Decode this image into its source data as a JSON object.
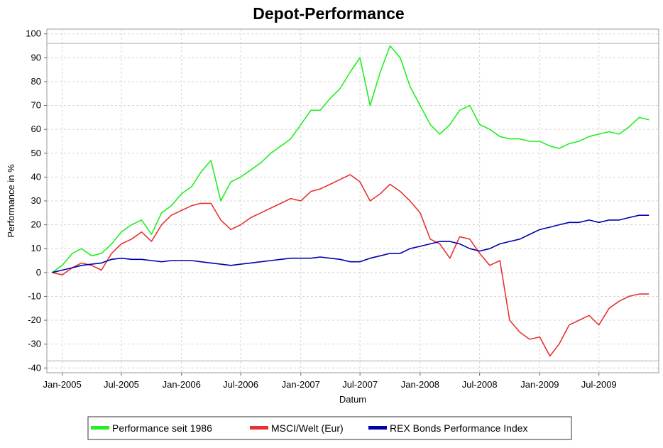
{
  "chart_data": {
    "type": "line",
    "title": "Depot-Performance",
    "xlabel": "Datum",
    "ylabel": "Performance in %",
    "ylim": [
      -42,
      102
    ],
    "xlim": [
      "2004-11-15",
      "2009-12-31"
    ],
    "yticks": [
      100,
      90,
      80,
      70,
      60,
      50,
      40,
      30,
      20,
      10,
      0,
      -10,
      -20,
      -30,
      -40
    ],
    "xticks": [
      {
        "date": "2005-01-01",
        "label": "Jan-2005"
      },
      {
        "date": "2005-07-01",
        "label": "Jul-2005"
      },
      {
        "date": "2006-01-01",
        "label": "Jan-2006"
      },
      {
        "date": "2006-07-01",
        "label": "Jul-2006"
      },
      {
        "date": "2007-01-01",
        "label": "Jan-2007"
      },
      {
        "date": "2007-07-01",
        "label": "Jul-2007"
      },
      {
        "date": "2008-01-01",
        "label": "Jan-2008"
      },
      {
        "date": "2008-07-01",
        "label": "Jul-2008"
      },
      {
        "date": "2009-01-01",
        "label": "Jan-2009"
      },
      {
        "date": "2009-07-01",
        "label": "Jul-2009"
      }
    ],
    "grid": true,
    "reference_lines": [
      96,
      -37
    ],
    "legend_position": "bottom",
    "series": [
      {
        "name": "Performance seit 1986",
        "color": "#22ee22",
        "x": [
          "2004-12-01",
          "2005-01-01",
          "2005-02-01",
          "2005-03-01",
          "2005-04-01",
          "2005-05-01",
          "2005-06-01",
          "2005-07-01",
          "2005-08-01",
          "2005-09-01",
          "2005-10-01",
          "2005-11-01",
          "2005-12-01",
          "2006-01-01",
          "2006-02-01",
          "2006-03-01",
          "2006-04-01",
          "2006-05-01",
          "2006-06-01",
          "2006-07-01",
          "2006-08-01",
          "2006-09-01",
          "2006-10-01",
          "2006-11-01",
          "2006-12-01",
          "2007-01-01",
          "2007-02-01",
          "2007-03-01",
          "2007-04-01",
          "2007-05-01",
          "2007-06-01",
          "2007-07-01",
          "2007-08-01",
          "2007-09-01",
          "2007-10-01",
          "2007-11-01",
          "2007-12-01",
          "2008-01-01",
          "2008-02-01",
          "2008-03-01",
          "2008-04-01",
          "2008-05-01",
          "2008-06-01",
          "2008-07-01",
          "2008-08-01",
          "2008-09-01",
          "2008-10-01",
          "2008-11-01",
          "2008-12-01",
          "2009-01-01",
          "2009-02-01",
          "2009-03-01",
          "2009-04-01",
          "2009-05-01",
          "2009-06-01",
          "2009-07-01",
          "2009-08-01",
          "2009-09-01",
          "2009-10-01",
          "2009-11-01",
          "2009-12-01"
        ],
        "y": [
          0,
          3,
          8,
          10,
          7,
          8,
          12,
          17,
          20,
          22,
          16,
          25,
          28,
          33,
          36,
          42,
          47,
          30,
          38,
          40,
          43,
          46,
          50,
          53,
          56,
          62,
          68,
          68,
          73,
          77,
          84,
          90,
          70,
          84,
          95,
          90,
          78,
          70,
          62,
          58,
          62,
          68,
          70,
          62,
          60,
          57,
          56,
          56,
          55,
          55,
          53,
          52,
          54,
          55,
          57,
          58,
          59,
          58,
          61,
          65,
          64
        ]
      },
      {
        "name": "MSCI/Welt (Eur)",
        "color": "#e63232",
        "x": [
          "2004-12-01",
          "2005-01-01",
          "2005-02-01",
          "2005-03-01",
          "2005-04-01",
          "2005-05-01",
          "2005-06-01",
          "2005-07-01",
          "2005-08-01",
          "2005-09-01",
          "2005-10-01",
          "2005-11-01",
          "2005-12-01",
          "2006-01-01",
          "2006-02-01",
          "2006-03-01",
          "2006-04-01",
          "2006-05-01",
          "2006-06-01",
          "2006-07-01",
          "2006-08-01",
          "2006-09-01",
          "2006-10-01",
          "2006-11-01",
          "2006-12-01",
          "2007-01-01",
          "2007-02-01",
          "2007-03-01",
          "2007-04-01",
          "2007-05-01",
          "2007-06-01",
          "2007-07-01",
          "2007-08-01",
          "2007-09-01",
          "2007-10-01",
          "2007-11-01",
          "2007-12-01",
          "2008-01-01",
          "2008-02-01",
          "2008-03-01",
          "2008-04-01",
          "2008-05-01",
          "2008-06-01",
          "2008-07-01",
          "2008-08-01",
          "2008-09-01",
          "2008-10-01",
          "2008-11-01",
          "2008-12-01",
          "2009-01-01",
          "2009-02-01",
          "2009-03-01",
          "2009-04-01",
          "2009-05-01",
          "2009-06-01",
          "2009-07-01",
          "2009-08-01",
          "2009-09-01",
          "2009-10-01",
          "2009-11-01",
          "2009-12-01"
        ],
        "y": [
          0,
          -1,
          2,
          4,
          3,
          1,
          8,
          12,
          14,
          17,
          13,
          20,
          24,
          26,
          28,
          29,
          29,
          22,
          18,
          20,
          23,
          25,
          27,
          29,
          31,
          30,
          34,
          35,
          37,
          39,
          41,
          38,
          30,
          33,
          37,
          34,
          30,
          25,
          14,
          12,
          6,
          15,
          14,
          8,
          3,
          5,
          -20,
          -25,
          -28,
          -27,
          -35,
          -30,
          -22,
          -20,
          -18,
          -22,
          -15,
          -12,
          -10,
          -9,
          -9
        ]
      },
      {
        "name": "REX Bonds Performance Index",
        "color": "#0000aa",
        "x": [
          "2004-12-01",
          "2005-01-01",
          "2005-02-01",
          "2005-03-01",
          "2005-04-01",
          "2005-05-01",
          "2005-06-01",
          "2005-07-01",
          "2005-08-01",
          "2005-09-01",
          "2005-10-01",
          "2005-11-01",
          "2005-12-01",
          "2006-01-01",
          "2006-02-01",
          "2006-03-01",
          "2006-04-01",
          "2006-05-01",
          "2006-06-01",
          "2006-07-01",
          "2006-08-01",
          "2006-09-01",
          "2006-10-01",
          "2006-11-01",
          "2006-12-01",
          "2007-01-01",
          "2007-02-01",
          "2007-03-01",
          "2007-04-01",
          "2007-05-01",
          "2007-06-01",
          "2007-07-01",
          "2007-08-01",
          "2007-09-01",
          "2007-10-01",
          "2007-11-01",
          "2007-12-01",
          "2008-01-01",
          "2008-02-01",
          "2008-03-01",
          "2008-04-01",
          "2008-05-01",
          "2008-06-01",
          "2008-07-01",
          "2008-08-01",
          "2008-09-01",
          "2008-10-01",
          "2008-11-01",
          "2008-12-01",
          "2009-01-01",
          "2009-02-01",
          "2009-03-01",
          "2009-04-01",
          "2009-05-01",
          "2009-06-01",
          "2009-07-01",
          "2009-08-01",
          "2009-09-01",
          "2009-10-01",
          "2009-11-01",
          "2009-12-01"
        ],
        "y": [
          0,
          1,
          2,
          3,
          3.5,
          4,
          5.5,
          6,
          5.5,
          5.5,
          5,
          4.5,
          5,
          5,
          5,
          4.5,
          4,
          3.5,
          3,
          3.5,
          4,
          4.5,
          5,
          5.5,
          6,
          6,
          6,
          6.5,
          6,
          5.5,
          4.5,
          4.5,
          6,
          7,
          8,
          8,
          10,
          11,
          12,
          13,
          13,
          12,
          10,
          9,
          10,
          12,
          13,
          14,
          16,
          18,
          19,
          20,
          21,
          21,
          22,
          21,
          22,
          22,
          23,
          24,
          24
        ]
      }
    ]
  }
}
